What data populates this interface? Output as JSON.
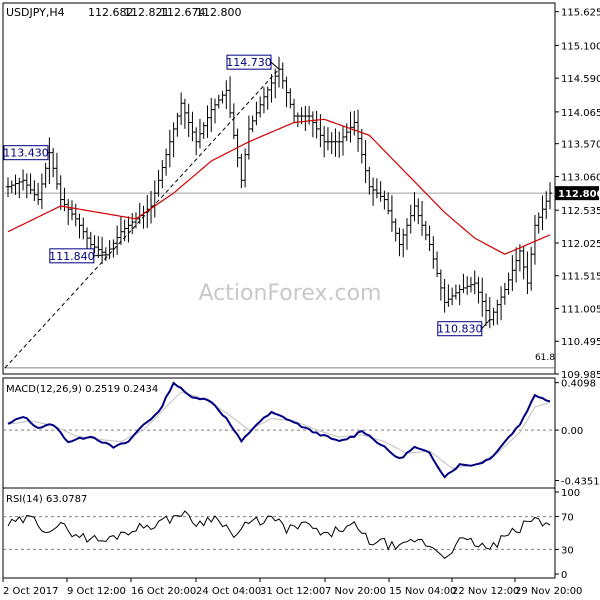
{
  "chart_data": [
    {
      "panel": "price",
      "type": "ohlc",
      "title": "USDJPY,H4",
      "ohlc_header": [
        "112.682",
        "112.821",
        "112.674",
        "112.800"
      ],
      "y_ticks": [
        "115.625",
        "115.100",
        "114.590",
        "114.065",
        "113.570",
        "113.060",
        "112.535",
        "112.025",
        "111.515",
        "111.005",
        "110.495",
        "109.985"
      ],
      "ylim": [
        109.985,
        115.76
      ],
      "last_price_label": "112.800",
      "annotations": [
        {
          "text": "113.430",
          "value": 113.43
        },
        {
          "text": "111.840",
          "value": 111.84
        },
        {
          "text": "114.730",
          "value": 114.73
        },
        {
          "text": "110.830",
          "value": 110.83
        }
      ],
      "fib_label": "61.8",
      "fib_level": 110.08,
      "watermark": "ActionForex.com",
      "price_keypoints": [
        [
          0,
          112.9
        ],
        [
          4,
          113.0
        ],
        [
          8,
          112.7
        ],
        [
          11,
          113.43
        ],
        [
          14,
          112.7
        ],
        [
          18,
          112.4
        ],
        [
          22,
          112.0
        ],
        [
          26,
          111.84
        ],
        [
          30,
          112.2
        ],
        [
          34,
          112.4
        ],
        [
          38,
          112.6
        ],
        [
          42,
          113.4
        ],
        [
          46,
          114.2
        ],
        [
          50,
          113.6
        ],
        [
          54,
          114.1
        ],
        [
          58,
          114.4
        ],
        [
          60,
          113.7
        ],
        [
          62,
          113.0
        ],
        [
          64,
          113.8
        ],
        [
          68,
          114.3
        ],
        [
          72,
          114.73
        ],
        [
          76,
          114.0
        ],
        [
          80,
          114.0
        ],
        [
          84,
          113.6
        ],
        [
          88,
          113.6
        ],
        [
          92,
          113.9
        ],
        [
          96,
          112.9
        ],
        [
          100,
          112.7
        ],
        [
          104,
          112.0
        ],
        [
          108,
          112.6
        ],
        [
          112,
          112.0
        ],
        [
          116,
          111.1
        ],
        [
          120,
          111.3
        ],
        [
          124,
          111.4
        ],
        [
          128,
          110.83
        ],
        [
          132,
          111.3
        ],
        [
          136,
          111.9
        ],
        [
          138,
          111.4
        ],
        [
          140,
          112.3
        ],
        [
          144,
          112.8
        ]
      ],
      "ma_keypoints": [
        [
          0,
          112.2
        ],
        [
          14,
          112.6
        ],
        [
          24,
          112.5
        ],
        [
          34,
          112.4
        ],
        [
          44,
          112.8
        ],
        [
          54,
          113.3
        ],
        [
          64,
          113.6
        ],
        [
          76,
          113.9
        ],
        [
          84,
          113.95
        ],
        [
          96,
          113.7
        ],
        [
          106,
          113.1
        ],
        [
          116,
          112.5
        ],
        [
          124,
          112.1
        ],
        [
          132,
          111.85
        ],
        [
          138,
          112.0
        ],
        [
          144,
          112.15
        ]
      ]
    },
    {
      "panel": "macd",
      "type": "line",
      "label": "MACD(12,26,9) 0.2519 0.2434",
      "y_ticks": [
        "0.4098",
        "0.00",
        "-0.4351"
      ],
      "ylim": [
        -0.5,
        0.45
      ],
      "macd_keypoints": [
        [
          0,
          0.05
        ],
        [
          4,
          0.12
        ],
        [
          8,
          0.02
        ],
        [
          12,
          0.05
        ],
        [
          16,
          -0.1
        ],
        [
          22,
          -0.05
        ],
        [
          28,
          -0.15
        ],
        [
          32,
          -0.1
        ],
        [
          36,
          0.05
        ],
        [
          40,
          0.15
        ],
        [
          44,
          0.41
        ],
        [
          48,
          0.3
        ],
        [
          54,
          0.25
        ],
        [
          58,
          0.1
        ],
        [
          62,
          -0.1
        ],
        [
          66,
          0.05
        ],
        [
          70,
          0.15
        ],
        [
          74,
          0.1
        ],
        [
          80,
          0.0
        ],
        [
          84,
          -0.05
        ],
        [
          88,
          -0.1
        ],
        [
          92,
          -0.05
        ],
        [
          94,
          0.0
        ],
        [
          98,
          -0.1
        ],
        [
          104,
          -0.25
        ],
        [
          108,
          -0.15
        ],
        [
          112,
          -0.2
        ],
        [
          116,
          -0.4
        ],
        [
          120,
          -0.3
        ],
        [
          124,
          -0.3
        ],
        [
          128,
          -0.25
        ],
        [
          132,
          -0.1
        ],
        [
          136,
          0.05
        ],
        [
          140,
          0.3
        ],
        [
          142,
          0.28
        ],
        [
          144,
          0.25
        ]
      ],
      "signal_keypoints": [
        [
          0,
          0.05
        ],
        [
          6,
          0.08
        ],
        [
          12,
          0.04
        ],
        [
          18,
          -0.05
        ],
        [
          24,
          -0.08
        ],
        [
          30,
          -0.1
        ],
        [
          36,
          0.0
        ],
        [
          42,
          0.2
        ],
        [
          46,
          0.33
        ],
        [
          52,
          0.27
        ],
        [
          58,
          0.15
        ],
        [
          64,
          0.0
        ],
        [
          70,
          0.1
        ],
        [
          76,
          0.08
        ],
        [
          82,
          0.0
        ],
        [
          88,
          -0.06
        ],
        [
          94,
          -0.04
        ],
        [
          100,
          -0.1
        ],
        [
          106,
          -0.2
        ],
        [
          112,
          -0.18
        ],
        [
          118,
          -0.33
        ],
        [
          124,
          -0.3
        ],
        [
          130,
          -0.2
        ],
        [
          136,
          -0.02
        ],
        [
          140,
          0.2
        ],
        [
          144,
          0.24
        ]
      ]
    },
    {
      "panel": "rsi",
      "type": "line",
      "label": "RSI(14) 63.0787",
      "y_ticks": [
        "100",
        "70",
        "30",
        "0"
      ],
      "ylim": [
        0,
        100
      ],
      "levels": [
        70,
        30
      ],
      "rsi_keypoints": [
        [
          0,
          60
        ],
        [
          6,
          68
        ],
        [
          10,
          55
        ],
        [
          14,
          58
        ],
        [
          20,
          45
        ],
        [
          26,
          40
        ],
        [
          30,
          50
        ],
        [
          36,
          58
        ],
        [
          42,
          65
        ],
        [
          46,
          75
        ],
        [
          50,
          62
        ],
        [
          56,
          70
        ],
        [
          60,
          45
        ],
        [
          64,
          62
        ],
        [
          70,
          68
        ],
        [
          74,
          55
        ],
        [
          80,
          60
        ],
        [
          84,
          45
        ],
        [
          88,
          55
        ],
        [
          92,
          58
        ],
        [
          96,
          40
        ],
        [
          100,
          38
        ],
        [
          104,
          30
        ],
        [
          108,
          42
        ],
        [
          112,
          35
        ],
        [
          116,
          22
        ],
        [
          120,
          40
        ],
        [
          124,
          38
        ],
        [
          128,
          30
        ],
        [
          132,
          45
        ],
        [
          136,
          55
        ],
        [
          140,
          70
        ],
        [
          142,
          58
        ],
        [
          144,
          63
        ]
      ]
    }
  ],
  "x_axis": {
    "count": 145,
    "labels": [
      {
        "text": "2 Oct 2017",
        "index": 0
      },
      {
        "text": "9 Oct 12:00",
        "index": 20
      },
      {
        "text": "16 Oct 20:00",
        "index": 39
      },
      {
        "text": "24 Oct 04:00",
        "index": 59
      },
      {
        "text": "31 Oct 12:00",
        "index": 79
      },
      {
        "text": "7 Nov 20:00",
        "index": 99
      },
      {
        "text": "15 Nov 04:00",
        "index": 118
      },
      {
        "text": "22 Nov 12:00",
        "index": 138
      },
      {
        "text": "29 Nov 20:00",
        "index": 157
      }
    ]
  },
  "colors": {
    "price_bars": "#000000",
    "ma": "#d00000",
    "macd": "#000080",
    "signal": "#c0c0c0",
    "label_box": "#000080",
    "grid": "#808080"
  }
}
